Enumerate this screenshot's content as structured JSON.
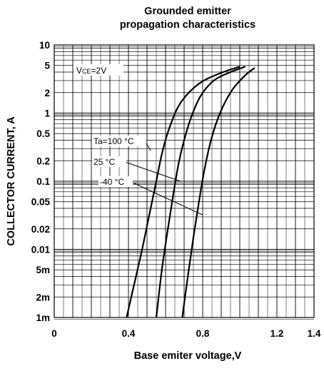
{
  "chart_data": {
    "type": "line",
    "title": [
      "Grounded emitter",
      "propagation characteristics"
    ],
    "xlabel": "Base emiter voltage,V",
    "ylabel": "COLLECTOR CURRENT, A",
    "x_scale": "linear",
    "y_scale": "log",
    "xlim": [
      0,
      1.4
    ],
    "ylim": [
      0.001,
      10
    ],
    "grid": true,
    "x_ticks": [
      {
        "value": 0,
        "label": "0"
      },
      {
        "value": 0.4,
        "label": "0.4"
      },
      {
        "value": 0.8,
        "label": "0.8"
      },
      {
        "value": 1.2,
        "label": "1.2"
      },
      {
        "value": 1.4,
        "label": "1.4"
      }
    ],
    "y_ticks": [
      {
        "value": 10,
        "label": "10"
      },
      {
        "value": 5,
        "label": "5"
      },
      {
        "value": 2,
        "label": "2"
      },
      {
        "value": 1,
        "label": "1"
      },
      {
        "value": 0.5,
        "label": "0.5"
      },
      {
        "value": 0.2,
        "label": "0.2"
      },
      {
        "value": 0.1,
        "label": "0.1"
      },
      {
        "value": 0.05,
        "label": "0.05"
      },
      {
        "value": 0.02,
        "label": "0.02"
      },
      {
        "value": 0.01,
        "label": "0.01"
      },
      {
        "value": 0.005,
        "label": "5m"
      },
      {
        "value": 0.002,
        "label": "2m"
      },
      {
        "value": 0.001,
        "label": "1m"
      }
    ],
    "condition_label": "VCE=2V",
    "series": [
      {
        "name": "Ta=100 °C",
        "x": [
          0.39,
          0.43,
          0.47,
          0.51,
          0.55,
          0.58,
          0.62,
          0.68,
          0.78,
          0.9,
          1.0
        ],
        "y": [
          0.001,
          0.003,
          0.009,
          0.03,
          0.1,
          0.25,
          0.6,
          1.4,
          2.7,
          3.9,
          4.8
        ]
      },
      {
        "name": "25 °C",
        "x": [
          0.55,
          0.58,
          0.61,
          0.64,
          0.67,
          0.7,
          0.74,
          0.79,
          0.86,
          0.95,
          1.03
        ],
        "y": [
          0.001,
          0.005,
          0.018,
          0.06,
          0.18,
          0.4,
          0.9,
          1.8,
          3.0,
          4.0,
          4.8
        ]
      },
      {
        "name": "-40 °C",
        "x": [
          0.69,
          0.72,
          0.75,
          0.78,
          0.81,
          0.85,
          0.9,
          0.96,
          1.03,
          1.08
        ],
        "y": [
          0.001,
          0.004,
          0.015,
          0.05,
          0.15,
          0.45,
          1.1,
          2.2,
          3.6,
          4.6
        ]
      }
    ],
    "annotations": [
      {
        "text": "Ta=100 °C",
        "series": 0,
        "at": [
          0.52,
          0.28
        ]
      },
      {
        "text": "25 °C",
        "series": 1,
        "at": [
          0.68,
          0.1
        ]
      },
      {
        "text": "-40 °C",
        "series": 2,
        "at": [
          0.8,
          0.032
        ]
      }
    ]
  }
}
